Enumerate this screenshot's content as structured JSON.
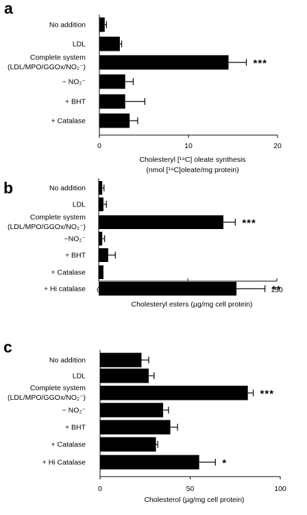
{
  "chart_data": [
    {
      "panel_label": "a",
      "type": "bar",
      "orientation": "horizontal",
      "categories": [
        "No addition",
        "LDL",
        "Complete system\n(LDL/MPO/GGOx/NO₂⁻)",
        "− NO₂⁻",
        "+ BHT",
        "+ Catalase"
      ],
      "values": [
        0.6,
        2.3,
        14.5,
        2.9,
        2.9,
        3.4
      ],
      "errors": [
        0.2,
        0.2,
        2.0,
        0.9,
        2.2,
        0.9
      ],
      "significance": [
        "",
        "",
        "***",
        "",
        "",
        ""
      ],
      "xlim": [
        0,
        20
      ],
      "xticks": [
        0,
        10,
        20
      ],
      "xlabel": "Cholesteryl [¹⁴C] oleate synthesis\n(nmol [¹⁴C]oleate/mg protein)",
      "grid": false
    },
    {
      "panel_label": "b",
      "type": "bar",
      "orientation": "horizontal",
      "categories": [
        "No addition",
        "LDL",
        "Complete system\n(LDL/MPO/GGOx/NO₂⁻)",
        "−NO₂⁻",
        "+ BHT",
        "+ Catalase",
        "+ Hi catalase"
      ],
      "values": [
        3,
        4,
        105,
        3,
        8,
        4,
        116
      ],
      "errors": [
        1.5,
        2.5,
        10,
        2,
        6,
        0,
        24
      ],
      "significance": [
        "",
        "",
        "***",
        "",
        "",
        "",
        "**"
      ],
      "xlim": [
        0,
        150
      ],
      "xticks": [
        0,
        75,
        150
      ],
      "xlabel": "Cholesteryl esters (µg/mg cell protein)",
      "grid": false
    },
    {
      "panel_label": "c",
      "type": "bar",
      "orientation": "horizontal",
      "categories": [
        "No addition",
        "LDL",
        "Complete system\n(LDL/MPO/GGOx/NO₂⁻)",
        "− NO₂⁻",
        "+ BHT",
        "+ Catalase",
        "+ Hi Catalase"
      ],
      "values": [
        23,
        27,
        82,
        35,
        39,
        31,
        55
      ],
      "errors": [
        4,
        3,
        3,
        3,
        4,
        1,
        9
      ],
      "significance": [
        "",
        "",
        "***",
        "",
        "",
        "",
        "*"
      ],
      "xlim": [
        0,
        100
      ],
      "xticks": [
        0,
        50,
        100
      ],
      "xlabel": "Cholesterol (µg/mg cell protein)",
      "grid": false
    }
  ]
}
